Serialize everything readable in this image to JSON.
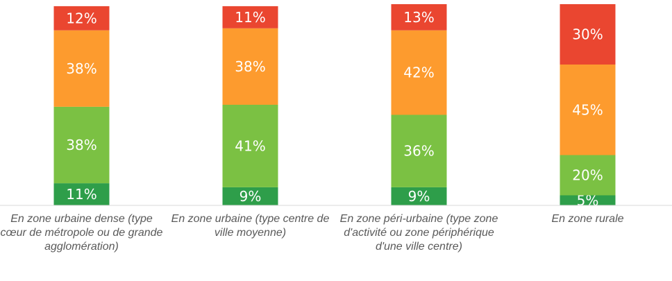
{
  "chart_data": {
    "type": "stacked-bar",
    "categories": [
      "En zone urbaine dense (type cœur de métropole ou de grande agglomération)",
      "En zone urbaine (type centre de ville moyenne)",
      "En zone péri-urbaine (type zone d'activité ou zone périphérique d'une ville centre)",
      "En zone rurale"
    ],
    "series": [
      {
        "color": "#2e9e4a",
        "values": [
          11,
          9,
          9,
          5
        ],
        "value_labels": [
          "11%",
          "9%",
          "9%",
          "5%"
        ]
      },
      {
        "color": "#7bc143",
        "values": [
          38,
          41,
          36,
          20
        ],
        "value_labels": [
          "38%",
          "41%",
          "36%",
          "20%"
        ]
      },
      {
        "color": "#fd9b2e",
        "values": [
          38,
          38,
          42,
          45
        ],
        "value_labels": [
          "38%",
          "38%",
          "42%",
          "45%"
        ]
      },
      {
        "color": "#ea4630",
        "values": [
          12,
          11,
          13,
          30
        ],
        "value_labels": [
          "12%",
          "11%",
          "13%",
          "30%"
        ]
      }
    ],
    "ylim": [
      0,
      100
    ]
  }
}
